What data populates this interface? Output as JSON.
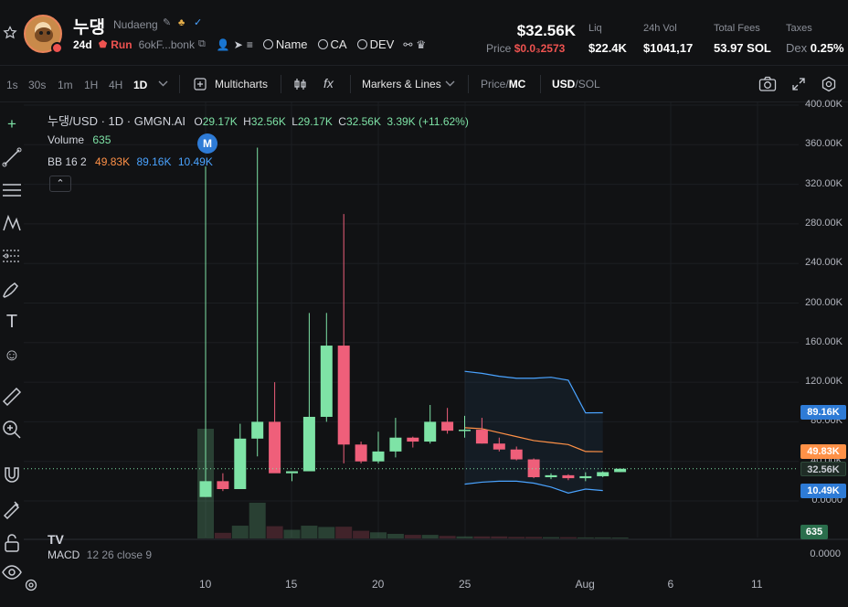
{
  "header": {
    "token_name": "누댕",
    "token_subname": "Nudaeng",
    "age": "24d",
    "run_label": "Run",
    "address": "6okF...bonk",
    "links": {
      "name": "Name",
      "ca": "CA",
      "dev": "DEV"
    },
    "price_big": "$32.56K",
    "price_label": "Price",
    "price_value": "$0.0₃2573",
    "liq_label": "Liq",
    "liq_value": "$22.4K",
    "vol_label": "24h Vol",
    "vol_value": "$1041,17",
    "fees_label": "Total Fees",
    "fees_value": "53.97 SOL",
    "taxes_label": "Taxes",
    "taxes_dex": "Dex",
    "taxes_value": "0.25%",
    "colors": {
      "red": "#ef5350",
      "green": "#7ee3a6"
    }
  },
  "toolbar": {
    "timeframes": [
      "1s",
      "30s",
      "1m",
      "1H",
      "4H",
      "1D"
    ],
    "active_timeframe": "1D",
    "multicharts": "Multicharts",
    "markers": "Markers & Lines",
    "price_mc_a": "Price",
    "price_mc_b": "MC",
    "usd_sol_a": "USD",
    "usd_sol_b": "SOL"
  },
  "legend": {
    "symbol": "누댕/USD · 1D · GMGN.AI",
    "o_label": "O",
    "o": "29.17K",
    "h_label": "H",
    "h": "32.56K",
    "l_label": "L",
    "l": "29.17K",
    "c_label": "C",
    "c": "32.56K",
    "change": "3.39K (+11.62%)",
    "volume_label": "Volume",
    "volume_value": "635",
    "bb_label": "BB 16 2",
    "bb_mid": "49.83K",
    "bb_upper": "89.16K",
    "bb_lower": "10.49K",
    "marker_badge": "M",
    "macd_label": "MACD",
    "macd_params": "12 26 close 9",
    "tv_logo": "TV"
  },
  "chart_data": {
    "type": "candlestick",
    "y_axis_labels": [
      "400.00K",
      "360.00K",
      "320.00K",
      "280.00K",
      "240.00K",
      "200.00K",
      "160.00K",
      "120.00K",
      "80.00K",
      "40.00K",
      "0.0000"
    ],
    "ylim": [
      0,
      400000
    ],
    "x_tick_labels": [
      "10",
      "15",
      "20",
      "25",
      "Aug",
      "6",
      "11"
    ],
    "macd_axis_label": "0.0000",
    "candles": [
      {
        "o": 4000,
        "h": 338000,
        "l": 4000,
        "c": 20000
      },
      {
        "o": 20000,
        "h": 28000,
        "l": 10000,
        "c": 12000
      },
      {
        "o": 12000,
        "h": 78000,
        "l": 12000,
        "c": 63000
      },
      {
        "o": 63000,
        "h": 357000,
        "l": 45000,
        "c": 80000
      },
      {
        "o": 80000,
        "h": 120000,
        "l": 30000,
        "c": 28000
      },
      {
        "o": 28000,
        "h": 28000,
        "l": 20000,
        "c": 30000
      },
      {
        "o": 30000,
        "h": 190000,
        "l": 30000,
        "c": 85000
      },
      {
        "o": 85000,
        "h": 190000,
        "l": 80000,
        "c": 157000
      },
      {
        "o": 157000,
        "h": 290000,
        "l": 38000,
        "c": 57000
      },
      {
        "o": 57000,
        "h": 60000,
        "l": 38000,
        "c": 40000
      },
      {
        "o": 40000,
        "h": 70000,
        "l": 38000,
        "c": 50000
      },
      {
        "o": 50000,
        "h": 84000,
        "l": 44000,
        "c": 64000
      },
      {
        "o": 64000,
        "h": 65000,
        "l": 54000,
        "c": 60000
      },
      {
        "o": 60000,
        "h": 97000,
        "l": 58000,
        "c": 80000
      },
      {
        "o": 80000,
        "h": 94000,
        "l": 68000,
        "c": 71000
      },
      {
        "o": 71000,
        "h": 86000,
        "l": 64000,
        "c": 72000
      },
      {
        "o": 72000,
        "h": 84000,
        "l": 58000,
        "c": 58000
      },
      {
        "o": 58000,
        "h": 64000,
        "l": 50000,
        "c": 52000
      },
      {
        "o": 52000,
        "h": 55000,
        "l": 41000,
        "c": 42000
      },
      {
        "o": 42000,
        "h": 43000,
        "l": 23000,
        "c": 24000
      },
      {
        "o": 24000,
        "h": 28000,
        "l": 22000,
        "c": 26000
      },
      {
        "o": 26000,
        "h": 27000,
        "l": 21000,
        "c": 23000
      },
      {
        "o": 23000,
        "h": 29000,
        "l": 20000,
        "c": 25000
      },
      {
        "o": 25000,
        "h": 30000,
        "l": 24000,
        "c": 29170
      },
      {
        "o": 29170,
        "h": 32560,
        "l": 29170,
        "c": 32560
      }
    ],
    "volumes": [
      430,
      22,
      50,
      140,
      48,
      34,
      50,
      45,
      46,
      30,
      24,
      18,
      14,
      14,
      10,
      8,
      8,
      8,
      6,
      6,
      5,
      5,
      4,
      4,
      3
    ],
    "bb_start_index": 15,
    "bb_upper": [
      131000,
      129000,
      126000,
      124000,
      124000,
      125000,
      122000,
      89000,
      89160
    ],
    "bb_mid": [
      74000,
      73000,
      69000,
      65000,
      61000,
      59000,
      57000,
      50000,
      49830
    ],
    "bb_lower": [
      17000,
      19000,
      20000,
      20000,
      18000,
      14000,
      8000,
      12000,
      10490
    ],
    "price_tags": [
      {
        "label": "89.16K",
        "value": 89160,
        "color": "#2e7bd6"
      },
      {
        "label": "49.83K",
        "value": 49830,
        "color": "#ff9147"
      },
      {
        "label": "32.56K",
        "value": 32560,
        "color": "#1f2c26"
      },
      {
        "label": "10.49K",
        "value": 10490,
        "color": "#2e7bd6"
      }
    ],
    "volume_tag": "635",
    "colors": {
      "up": "#7ee3a6",
      "down": "#ef5f7a",
      "bb_upper": "#4aa3ff",
      "bb_mid": "#ff9147",
      "bb_lower": "#4aa3ff"
    },
    "grid": true
  }
}
